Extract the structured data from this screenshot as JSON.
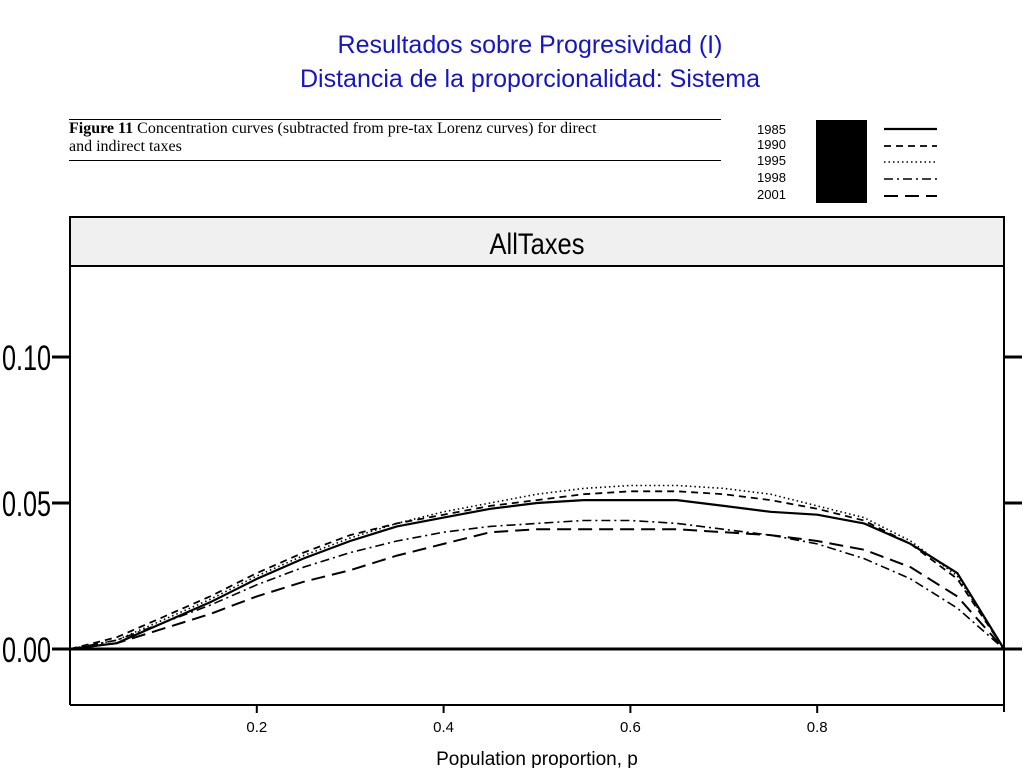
{
  "slide": {
    "title_line1": "Resultados sobre Progresividad (I)",
    "title_line2": "Distancia de la proporcionalidad: Sistema"
  },
  "caption": {
    "figure_label": "Figure 11",
    "text_line1": " Concentration curves (subtracted from pre-tax Lorenz curves) for direct",
    "text_line2": "and indirect taxes"
  },
  "colors": {
    "title": "#1515c8",
    "panel_strip": "#f0f0f0",
    "ink": "#000000"
  },
  "chart_data": {
    "type": "line",
    "title": "AllTaxes",
    "xlabel": "Population proportion, p",
    "ylabel": "",
    "xlim": [
      0.0,
      1.0
    ],
    "ylim": [
      -0.02,
      0.13
    ],
    "xticks": [
      0.2,
      0.4,
      0.6,
      0.8
    ],
    "xtick_labels": [
      "0.2",
      "0.4",
      "0.6",
      "0.8"
    ],
    "yticks": [
      0.0,
      0.05,
      0.1
    ],
    "ytick_labels": [
      "0.00",
      "0.05",
      "0.10"
    ],
    "legend": {
      "placement": "top-right"
    },
    "series": [
      {
        "name": "1985",
        "dash": "solid",
        "x": [
          0,
          0.05,
          0.1,
          0.15,
          0.2,
          0.25,
          0.3,
          0.35,
          0.4,
          0.45,
          0.5,
          0.55,
          0.6,
          0.65,
          0.7,
          0.75,
          0.8,
          0.85,
          0.9,
          0.95,
          1.0
        ],
        "y": [
          0,
          0.002,
          0.009,
          0.016,
          0.024,
          0.031,
          0.037,
          0.042,
          0.045,
          0.048,
          0.05,
          0.051,
          0.051,
          0.051,
          0.049,
          0.047,
          0.046,
          0.043,
          0.036,
          0.026,
          0
        ]
      },
      {
        "name": "1990",
        "dash": "dashed",
        "x": [
          0,
          0.05,
          0.1,
          0.15,
          0.2,
          0.25,
          0.3,
          0.35,
          0.4,
          0.45,
          0.5,
          0.55,
          0.6,
          0.65,
          0.7,
          0.75,
          0.8,
          0.85,
          0.9,
          0.95,
          1.0
        ],
        "y": [
          0,
          0.004,
          0.011,
          0.018,
          0.026,
          0.033,
          0.039,
          0.043,
          0.046,
          0.049,
          0.051,
          0.053,
          0.054,
          0.054,
          0.053,
          0.051,
          0.048,
          0.044,
          0.036,
          0.024,
          0
        ]
      },
      {
        "name": "1995",
        "dash": "dotted",
        "x": [
          0,
          0.05,
          0.1,
          0.15,
          0.2,
          0.25,
          0.3,
          0.35,
          0.4,
          0.45,
          0.5,
          0.55,
          0.6,
          0.65,
          0.7,
          0.75,
          0.8,
          0.85,
          0.9,
          0.95,
          1.0
        ],
        "y": [
          0,
          0.003,
          0.01,
          0.017,
          0.025,
          0.032,
          0.038,
          0.043,
          0.047,
          0.05,
          0.053,
          0.055,
          0.056,
          0.056,
          0.055,
          0.053,
          0.049,
          0.045,
          0.037,
          0.025,
          0
        ]
      },
      {
        "name": "1998",
        "dash": "dashdot",
        "x": [
          0,
          0.05,
          0.1,
          0.15,
          0.2,
          0.25,
          0.3,
          0.35,
          0.4,
          0.45,
          0.5,
          0.55,
          0.6,
          0.65,
          0.7,
          0.75,
          0.8,
          0.85,
          0.9,
          0.95,
          1.0
        ],
        "y": [
          0,
          0.003,
          0.009,
          0.015,
          0.022,
          0.028,
          0.033,
          0.037,
          0.04,
          0.042,
          0.043,
          0.044,
          0.044,
          0.043,
          0.041,
          0.039,
          0.036,
          0.031,
          0.024,
          0.014,
          0
        ]
      },
      {
        "name": "2001",
        "dash": "longdash",
        "x": [
          0,
          0.05,
          0.1,
          0.15,
          0.2,
          0.25,
          0.3,
          0.35,
          0.4,
          0.45,
          0.5,
          0.55,
          0.6,
          0.65,
          0.7,
          0.75,
          0.8,
          0.85,
          0.9,
          0.95,
          1.0
        ],
        "y": [
          0,
          0.002,
          0.007,
          0.012,
          0.018,
          0.023,
          0.027,
          0.032,
          0.036,
          0.04,
          0.041,
          0.041,
          0.041,
          0.041,
          0.04,
          0.039,
          0.037,
          0.034,
          0.028,
          0.018,
          0
        ]
      }
    ]
  }
}
